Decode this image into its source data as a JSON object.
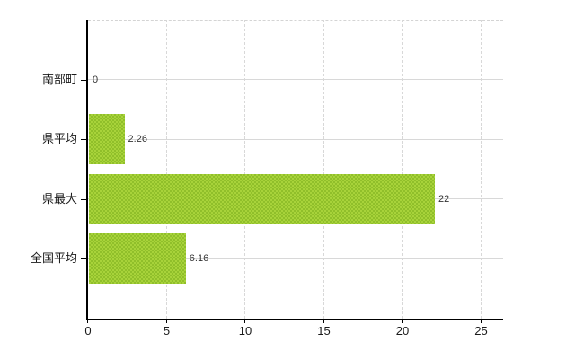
{
  "chart_data": {
    "type": "bar",
    "orientation": "horizontal",
    "title": "",
    "xlabel": "",
    "ylabel": "",
    "categories": [
      "南部町",
      "県平均",
      "県最大",
      "全国平均"
    ],
    "values": [
      0,
      2.26,
      22,
      6.16
    ],
    "value_labels": [
      "0",
      "2.26",
      "22",
      "6.16"
    ],
    "x_ticks": [
      0,
      5,
      10,
      15,
      20,
      25
    ],
    "x_tick_labels": [
      "0",
      "5",
      "10",
      "15",
      "20",
      "25"
    ],
    "xlim": [
      0,
      26.4
    ],
    "grid": true,
    "legend": "none",
    "bar_color": "#9cc72f",
    "bar_color_light": "#a8d33a",
    "bar_color_dark": "#90bf2a",
    "gridline_color": "#d8d8d8",
    "axis_color": "#000000",
    "label_color": "#1a1a1a",
    "value_label_color": "#333333",
    "background_color": "#ffffff"
  }
}
